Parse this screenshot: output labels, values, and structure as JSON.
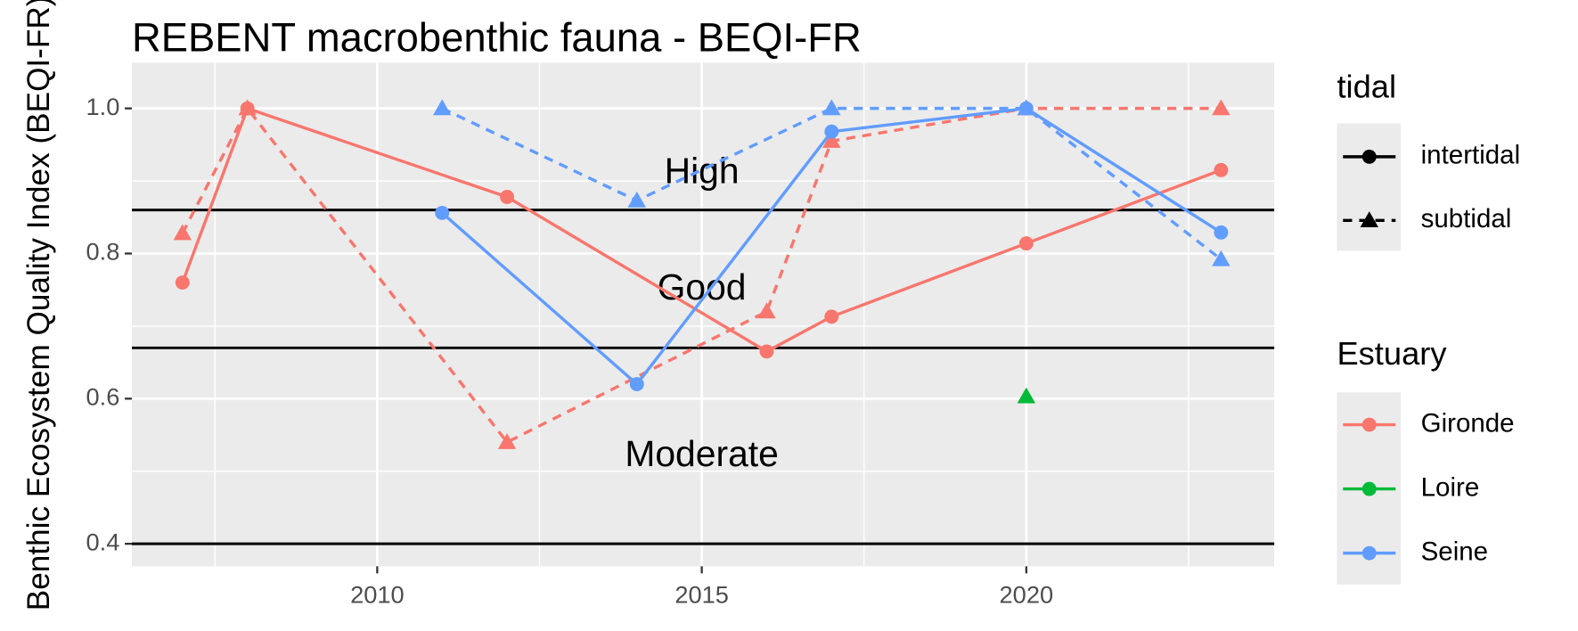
{
  "chart_data": {
    "type": "line",
    "title": "REBENT macrobenthic fauna - BEQI-FR",
    "y_label": "Benthic Ecosystem Quality Index (BEQI-FR)",
    "xlim": [
      2006.22,
      2023.82
    ],
    "xticks": [
      2010,
      2015,
      2020
    ],
    "ylim": [
      0.369,
      1.063
    ],
    "yticks": [
      {
        "value": 0.4,
        "label": "0.4"
      },
      {
        "value": 0.6,
        "label": "0.6"
      },
      {
        "value": 0.8,
        "label": "0.8"
      },
      {
        "value": 1.0,
        "label": "1.0"
      }
    ],
    "grid": true,
    "hlines": [
      0.86,
      0.67,
      0.4
    ],
    "annotations": [
      {
        "text": "High",
        "x": 2015,
        "y": 0.91
      },
      {
        "text": "Good",
        "x": 2015,
        "y": 0.75
      },
      {
        "text": "Moderate",
        "x": 2015,
        "y": 0.52
      }
    ],
    "legend_tidal": {
      "title": "tidal",
      "entries": [
        "intertidal",
        "subtidal"
      ]
    },
    "legend_estuary": {
      "title": "Estuary",
      "entries": [
        {
          "name": "Gironde",
          "color": "#f8766d"
        },
        {
          "name": "Loire",
          "color": "#00ba38"
        },
        {
          "name": "Seine",
          "color": "#619cff"
        }
      ]
    },
    "series": [
      {
        "name": "Gironde",
        "tidal": "intertidal",
        "color": "#f8766d",
        "x": [
          2007,
          2008,
          2012,
          2016,
          2017,
          2020,
          2023
        ],
        "values": [
          0.76,
          1.0,
          0.878,
          0.665,
          0.713,
          0.814,
          0.915
        ]
      },
      {
        "name": "Gironde",
        "tidal": "subtidal",
        "color": "#f8766d",
        "x": [
          2007,
          2008,
          2012,
          2016,
          2017,
          2020,
          2023
        ],
        "values": [
          0.828,
          1.0,
          0.54,
          0.72,
          0.955,
          1.0,
          1.0
        ]
      },
      {
        "name": "Loire",
        "tidal": "subtidal",
        "color": "#00ba38",
        "x": [
          2020
        ],
        "values": [
          0.603
        ]
      },
      {
        "name": "Seine",
        "tidal": "intertidal",
        "color": "#619cff",
        "x": [
          2011,
          2014,
          2017,
          2020,
          2023
        ],
        "values": [
          0.856,
          0.62,
          0.968,
          1.0,
          0.829
        ]
      },
      {
        "name": "Seine",
        "tidal": "subtidal",
        "color": "#619cff",
        "x": [
          2011,
          2014,
          2017,
          2020,
          2023
        ],
        "values": [
          1.0,
          0.873,
          1.0,
          1.0,
          0.792
        ]
      }
    ]
  }
}
